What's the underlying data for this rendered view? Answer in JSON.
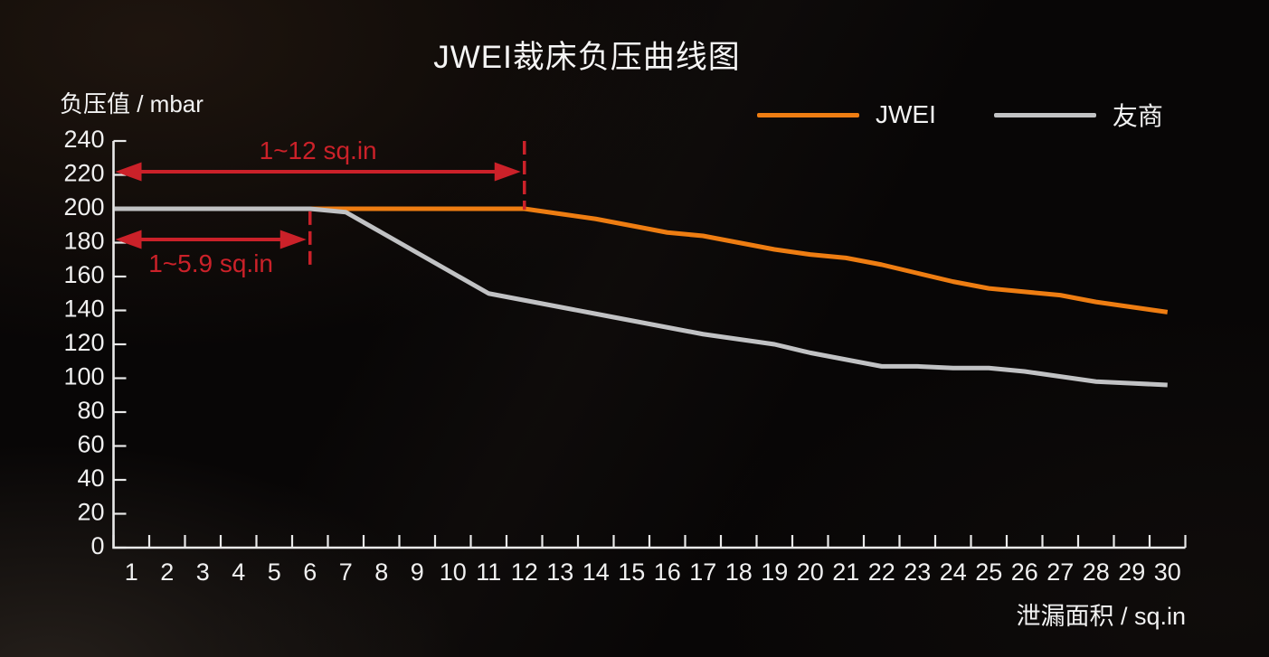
{
  "chart_data": {
    "type": "line",
    "title": "JWEI裁床负压曲线图",
    "xlabel": "泄漏面积 / sq.in",
    "ylabel": "负压值 / mbar",
    "x": [
      1,
      2,
      3,
      4,
      5,
      6,
      7,
      8,
      9,
      10,
      11,
      12,
      13,
      14,
      15,
      16,
      17,
      18,
      19,
      20,
      21,
      22,
      23,
      24,
      25,
      26,
      27,
      28,
      29,
      30
    ],
    "y_ticks": [
      0,
      20,
      40,
      60,
      80,
      100,
      120,
      140,
      160,
      180,
      200,
      220,
      240
    ],
    "ylim": [
      0,
      240
    ],
    "xlim": [
      1,
      30
    ],
    "grid": false,
    "legend_position": "top-right",
    "axis_color": "#e9e9e9",
    "text_color": "#f0f0f0",
    "series": [
      {
        "name": "JWEI",
        "color": "#ee7d12",
        "values": [
          200,
          200,
          200,
          200,
          200,
          200,
          200,
          200,
          200,
          200,
          200,
          200,
          197,
          194,
          190,
          186,
          184,
          180,
          176,
          173,
          171,
          167,
          162,
          157,
          153,
          151,
          149,
          145,
          142,
          139
        ]
      },
      {
        "name": "友商",
        "color": "#c1c2c4",
        "values": [
          200,
          200,
          200,
          200,
          200,
          200,
          198,
          186,
          174,
          162,
          150,
          146,
          142,
          138,
          134,
          130,
          126,
          123,
          120,
          115,
          111,
          107,
          107,
          106,
          106,
          104,
          101,
          98,
          97,
          96
        ]
      }
    ],
    "annotations": [
      {
        "text": "1~12 sq.in",
        "from_x": 1,
        "to_x": 12,
        "at_y": 220,
        "dash_x": 12,
        "dash_from_val": 240,
        "dash_to_val": 199.5,
        "label_side": "above",
        "color": "#cb2129"
      },
      {
        "text": "1~5.9 sq.in",
        "from_x": 1,
        "to_x": 5.9,
        "at_y": 180,
        "dash_x": 6,
        "dash_from_val": 198.5,
        "dash_to_val": 164,
        "label_side": "below",
        "color": "#cb2129"
      }
    ]
  }
}
